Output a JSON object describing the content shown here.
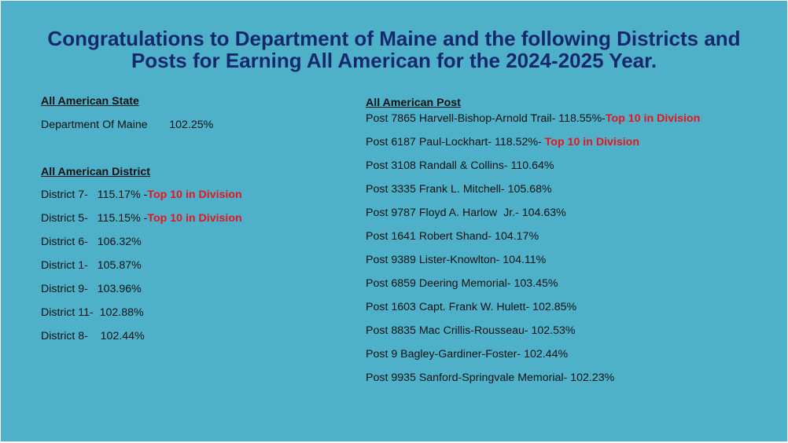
{
  "title": {
    "line1": "Congratulations to Department of Maine and the following Districts and",
    "line2": "Posts for Earning All American for the 2024-2025 Year."
  },
  "state": {
    "heading": "All American State",
    "entry": "Department Of Maine       102.25%"
  },
  "districts": {
    "heading": "All American District",
    "items": [
      {
        "text": "District 7-   115.17% -",
        "highlight": "Top 10 in Division"
      },
      {
        "text": "District 5-   115.15% -",
        "highlight": "Top 10 in Division"
      },
      {
        "text": "District 6-   106.32%",
        "highlight": ""
      },
      {
        "text": "District 1-   105.87%",
        "highlight": ""
      },
      {
        "text": "District 9-   103.96%",
        "highlight": ""
      },
      {
        "text": "District 11-  102.88%",
        "highlight": ""
      },
      {
        "text": "District 8-    102.44%",
        "highlight": ""
      }
    ]
  },
  "posts": {
    "heading": "All American Post",
    "items": [
      {
        "text": "Post 7865 Harvell-Bishop-Arnold Trail- 118.55%-",
        "highlight": "Top 10 in Division"
      },
      {
        "text": "Post 6187 Paul-Lockhart- 118.52%- ",
        "highlight": "Top 10 in Division"
      },
      {
        "text": "Post 3108 Randall & Collins- 110.64%",
        "highlight": ""
      },
      {
        "text": "Post 3335 Frank L. Mitchell- 105.68%",
        "highlight": ""
      },
      {
        "text": "Post 9787 Floyd A. Harlow  Jr.- 104.63%",
        "highlight": ""
      },
      {
        "text": "Post 1641 Robert Shand- 104.17%",
        "highlight": ""
      },
      {
        "text": "Post 9389 Lister-Knowlton- 104.11%",
        "highlight": ""
      },
      {
        "text": "Post 6859 Deering Memorial- 103.45%",
        "highlight": ""
      },
      {
        "text": "Post 1603 Capt. Frank W. Hulett- 102.85%",
        "highlight": ""
      },
      {
        "text": "Post 8835 Mac Crillis-Rousseau- 102.53%",
        "highlight": ""
      },
      {
        "text": "Post 9 Bagley-Gardiner-Foster- 102.44%",
        "highlight": ""
      },
      {
        "text": "Post 9935 Sanford-Springvale Memorial- 102.23%",
        "highlight": ""
      }
    ]
  },
  "colors": {
    "background": "#4fb1c9",
    "title": "#14286e",
    "text": "#111111",
    "highlight": "#e8141a"
  }
}
